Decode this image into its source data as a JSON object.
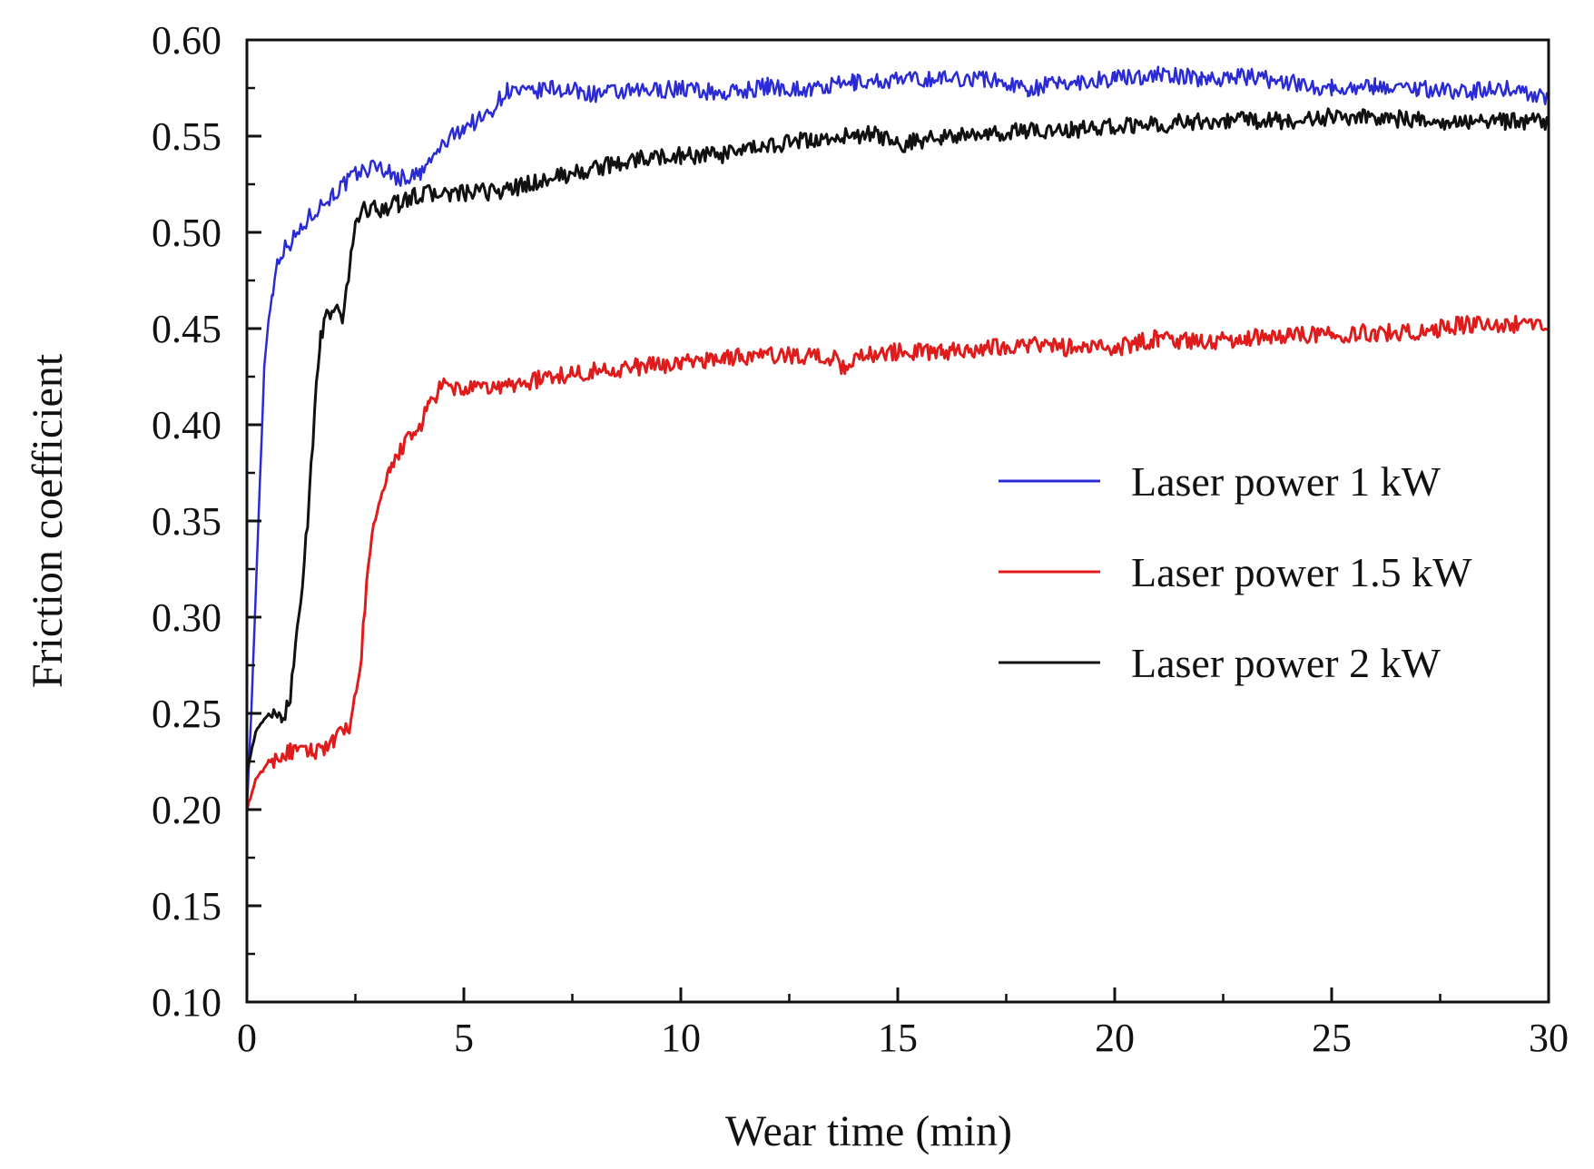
{
  "chart_data": {
    "type": "line",
    "title": "",
    "xlabel": "Wear time (min)",
    "ylabel": "Friction coefficient",
    "xlim": [
      0,
      30
    ],
    "ylim": [
      0.1,
      0.6
    ],
    "xticks": [
      0,
      5,
      10,
      15,
      20,
      25,
      30
    ],
    "xtick_labels": [
      "0",
      "5",
      "10",
      "15",
      "20",
      "25",
      "30"
    ],
    "yticks": [
      0.1,
      0.15,
      0.2,
      0.25,
      0.3,
      0.35,
      0.4,
      0.45,
      0.5,
      0.55,
      0.6
    ],
    "ytick_labels": [
      "0.10",
      "0.15",
      "0.20",
      "0.25",
      "0.30",
      "0.35",
      "0.40",
      "0.45",
      "0.50",
      "0.55",
      "0.60"
    ],
    "grid": false,
    "legend_position": "center-right",
    "series": [
      {
        "name": "Laser power 1 kW",
        "color": "#2b2bd6",
        "x": [
          0,
          0.1,
          0.2,
          0.3,
          0.4,
          0.5,
          0.6,
          0.7,
          0.8,
          1.0,
          1.2,
          1.5,
          2.0,
          2.5,
          3.0,
          3.5,
          4.0,
          4.5,
          5.0,
          5.5,
          6.0,
          6.5,
          7.0,
          8.0,
          9.0,
          10.0,
          11.0,
          12.0,
          13.0,
          14.0,
          15.0,
          16.0,
          17.0,
          18.0,
          19.0,
          20.0,
          21.0,
          22.0,
          23.0,
          24.0,
          25.0,
          26.0,
          27.0,
          28.0,
          29.0,
          30.0
        ],
        "values": [
          0.2,
          0.25,
          0.31,
          0.37,
          0.43,
          0.455,
          0.47,
          0.485,
          0.49,
          0.495,
          0.5,
          0.51,
          0.52,
          0.53,
          0.535,
          0.528,
          0.53,
          0.545,
          0.555,
          0.56,
          0.574,
          0.572,
          0.575,
          0.572,
          0.573,
          0.575,
          0.572,
          0.576,
          0.574,
          0.578,
          0.579,
          0.58,
          0.58,
          0.575,
          0.578,
          0.58,
          0.582,
          0.58,
          0.581,
          0.578,
          0.575,
          0.576,
          0.575,
          0.573,
          0.575,
          0.57
        ]
      },
      {
        "name": "Laser power 1.5 kW",
        "color": "#e01b1b",
        "x": [
          0,
          0.2,
          0.5,
          1.0,
          1.5,
          2.0,
          2.4,
          2.6,
          2.8,
          3.0,
          3.3,
          3.6,
          3.9,
          4.2,
          4.5,
          5.0,
          6.0,
          7.0,
          8.0,
          9.0,
          10.0,
          11.0,
          12.0,
          13.0,
          13.5,
          13.8,
          14.0,
          15.0,
          16.0,
          17.0,
          18.0,
          19.0,
          20.0,
          21.0,
          22.0,
          23.0,
          24.0,
          25.0,
          26.0,
          27.0,
          28.0,
          29.0,
          30.0
        ],
        "values": [
          0.2,
          0.215,
          0.225,
          0.23,
          0.23,
          0.235,
          0.245,
          0.27,
          0.33,
          0.355,
          0.375,
          0.39,
          0.395,
          0.41,
          0.42,
          0.418,
          0.42,
          0.425,
          0.428,
          0.43,
          0.432,
          0.435,
          0.436,
          0.436,
          0.435,
          0.428,
          0.436,
          0.438,
          0.438,
          0.44,
          0.442,
          0.44,
          0.44,
          0.445,
          0.443,
          0.445,
          0.447,
          0.447,
          0.448,
          0.448,
          0.452,
          0.452,
          0.453
        ]
      },
      {
        "name": "Laser power 2 kW",
        "color": "#111111",
        "x": [
          0,
          0.2,
          0.5,
          0.8,
          1.0,
          1.2,
          1.4,
          1.6,
          1.7,
          1.8,
          2.0,
          2.2,
          2.3,
          2.4,
          2.5,
          2.7,
          3.0,
          3.5,
          4.0,
          5.0,
          6.0,
          7.0,
          8.0,
          9.0,
          10.0,
          11.0,
          12.0,
          13.0,
          14.0,
          14.5,
          15.0,
          16.0,
          17.0,
          18.0,
          19.0,
          20.0,
          21.0,
          22.0,
          23.0,
          24.0,
          25.0,
          26.0,
          27.0,
          28.0,
          29.0,
          30.0
        ],
        "values": [
          0.22,
          0.24,
          0.25,
          0.245,
          0.26,
          0.3,
          0.35,
          0.42,
          0.445,
          0.455,
          0.46,
          0.455,
          0.47,
          0.49,
          0.505,
          0.512,
          0.512,
          0.515,
          0.52,
          0.52,
          0.522,
          0.528,
          0.533,
          0.538,
          0.54,
          0.54,
          0.545,
          0.548,
          0.55,
          0.551,
          0.545,
          0.55,
          0.55,
          0.553,
          0.553,
          0.555,
          0.556,
          0.558,
          0.558,
          0.558,
          0.56,
          0.56,
          0.558,
          0.558,
          0.558,
          0.557
        ]
      }
    ]
  }
}
